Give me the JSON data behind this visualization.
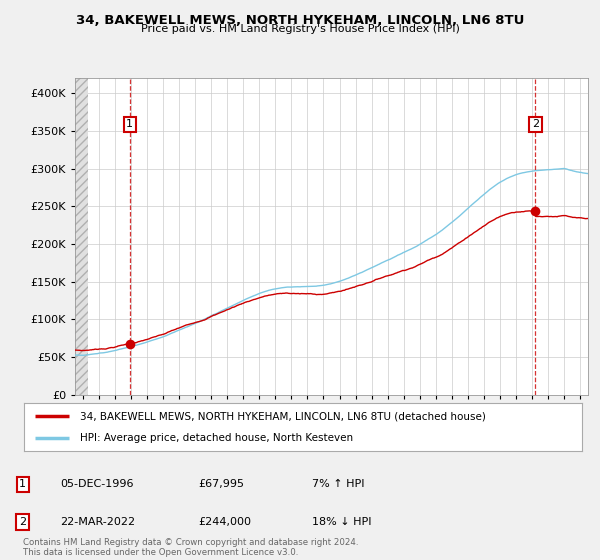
{
  "title1": "34, BAKEWELL MEWS, NORTH HYKEHAM, LINCOLN, LN6 8TU",
  "title2": "Price paid vs. HM Land Registry's House Price Index (HPI)",
  "ylim": [
    0,
    420000
  ],
  "yticks": [
    0,
    50000,
    100000,
    150000,
    200000,
    250000,
    300000,
    350000,
    400000
  ],
  "ytick_labels": [
    "£0",
    "£50K",
    "£100K",
    "£150K",
    "£200K",
    "£250K",
    "£300K",
    "£350K",
    "£400K"
  ],
  "bg_color": "#f0f0f0",
  "plot_bg_color": "#ffffff",
  "grid_color": "#cccccc",
  "red_line_color": "#cc0000",
  "blue_line_color": "#7ec8e3",
  "vline_color": "#cc0000",
  "point1_x": 1996.92,
  "point1_y": 67995,
  "point2_x": 2022.22,
  "point2_y": 244000,
  "marker_color": "#cc0000",
  "legend_label1": "34, BAKEWELL MEWS, NORTH HYKEHAM, LINCOLN, LN6 8TU (detached house)",
  "legend_label2": "HPI: Average price, detached house, North Kesteven",
  "annotation1_label": "1",
  "annotation2_label": "2",
  "table_row1": [
    "1",
    "05-DEC-1996",
    "£67,995",
    "7% ↑ HPI"
  ],
  "table_row2": [
    "2",
    "22-MAR-2022",
    "£244,000",
    "18% ↓ HPI"
  ],
  "footer": "Contains HM Land Registry data © Crown copyright and database right 2024.\nThis data is licensed under the Open Government Licence v3.0.",
  "xmin": 1993.5,
  "xmax": 2025.5,
  "xticks": [
    1994,
    1995,
    1996,
    1997,
    1998,
    1999,
    2000,
    2001,
    2002,
    2003,
    2004,
    2005,
    2006,
    2007,
    2008,
    2009,
    2010,
    2011,
    2012,
    2013,
    2014,
    2015,
    2016,
    2017,
    2018,
    2019,
    2020,
    2021,
    2022,
    2023,
    2024,
    2025
  ],
  "hatch_end_x": 1994.3
}
